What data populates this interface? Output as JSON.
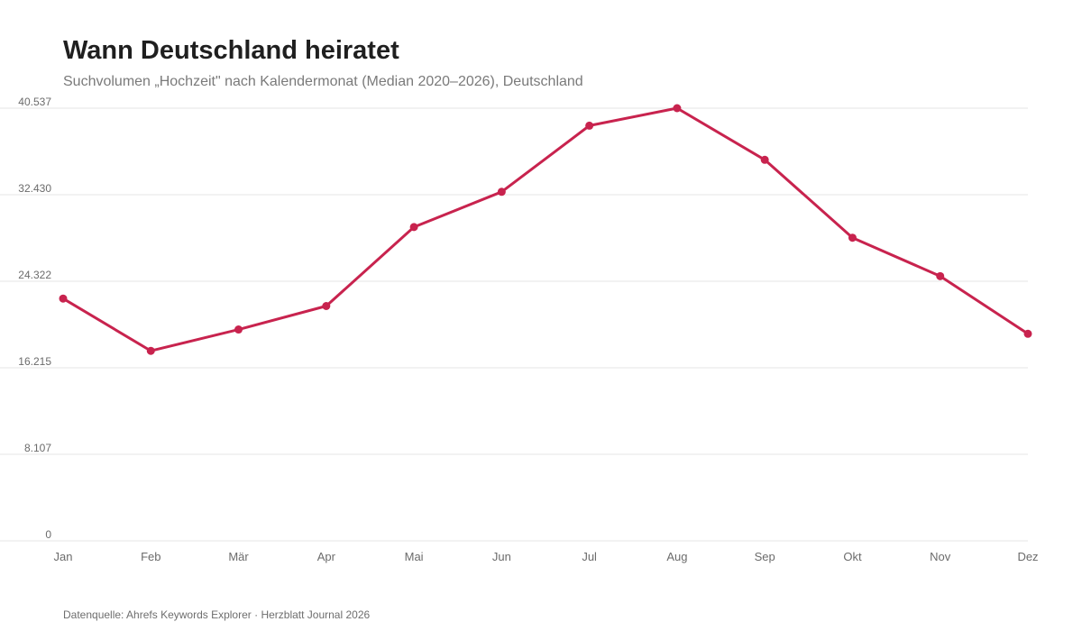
{
  "header": {
    "title": "Wann Deutschland heiratet",
    "subtitle": "Suchvolumen „Hochzeit\" nach Kalendermonat (Median 2020–2026), Deutschland"
  },
  "footer": {
    "source": "Datenquelle: Ahrefs Keywords Explorer · Herzblatt Journal 2026"
  },
  "colors": {
    "line": "#c8234e",
    "grid": "#e6e6e6",
    "axis_text": "#6b6b6b"
  },
  "chart_data": {
    "type": "line",
    "title": "Wann Deutschland heiratet",
    "subtitle": "Suchvolumen „Hochzeit\" nach Kalendermonat (Median 2020–2026), Deutschland",
    "xlabel": "",
    "ylabel": "",
    "categories": [
      "Jan",
      "Feb",
      "Mär",
      "Apr",
      "Mai",
      "Jun",
      "Jul",
      "Aug",
      "Sep",
      "Okt",
      "Nov",
      "Dez"
    ],
    "series": [
      {
        "values": [
          22700,
          17800,
          19800,
          22000,
          29400,
          32700,
          38900,
          40537,
          35700,
          28400,
          24800,
          19400
        ]
      }
    ],
    "ylim": [
      0,
      40537
    ],
    "yticks": [
      0,
      8107,
      16215,
      24322,
      32430,
      40537
    ],
    "ytick_labels": [
      "0",
      "8.107",
      "16.215",
      "24.322",
      "32.430",
      "40.537"
    ],
    "grid": true,
    "legend": "none"
  }
}
